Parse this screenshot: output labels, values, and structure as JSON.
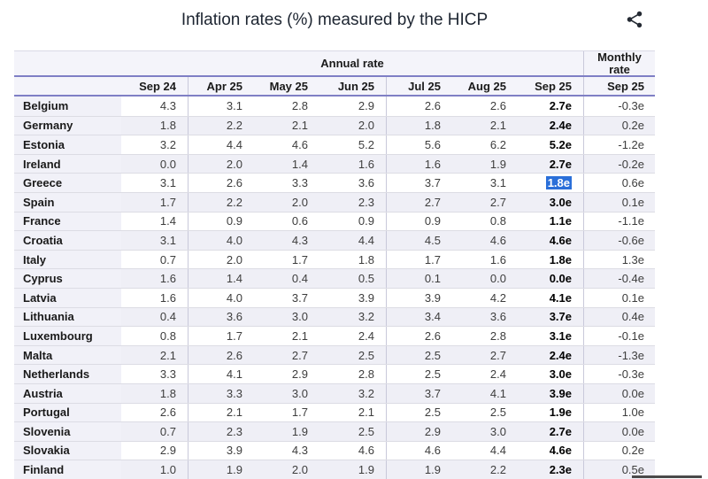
{
  "title": "Inflation rates (%) measured by the HICP",
  "share_button": {
    "icon": "share-icon"
  },
  "colors": {
    "selection_bg": "#2a6fd9",
    "selection_text": "#ffffff",
    "header_border_blue": "#7f7fc5",
    "header_bg": "#f4f4fa",
    "row_alt_bg": "#efeff6",
    "label_column_bg": "#f1f1f8"
  },
  "chart_data": {
    "type": "table",
    "title": "Inflation rates (%) measured by the HICP",
    "group_headers": {
      "annual": "Annual rate",
      "monthly": "Monthly rate"
    },
    "annual_columns": [
      "Sep 24",
      "Apr 25",
      "May 25",
      "Jun 25",
      "Jul 25",
      "Aug 25",
      "Sep 25"
    ],
    "monthly_column": "Sep 25",
    "selected_cell": {
      "country": "Greece",
      "column": "Sep 25",
      "value": "1.8e"
    },
    "rows": [
      {
        "country": "Belgium",
        "annual": [
          "4.3",
          "3.1",
          "2.8",
          "2.9",
          "2.6",
          "2.6",
          "2.7e"
        ],
        "monthly": "-0.3e"
      },
      {
        "country": "Germany",
        "annual": [
          "1.8",
          "2.2",
          "2.1",
          "2.0",
          "1.8",
          "2.1",
          "2.4e"
        ],
        "monthly": "0.2e"
      },
      {
        "country": "Estonia",
        "annual": [
          "3.2",
          "4.4",
          "4.6",
          "5.2",
          "5.6",
          "6.2",
          "5.2e"
        ],
        "monthly": "-1.2e"
      },
      {
        "country": "Ireland",
        "annual": [
          "0.0",
          "2.0",
          "1.4",
          "1.6",
          "1.6",
          "1.9",
          "2.7e"
        ],
        "monthly": "-0.2e"
      },
      {
        "country": "Greece",
        "annual": [
          "3.1",
          "2.6",
          "3.3",
          "3.6",
          "3.7",
          "3.1",
          "1.8e"
        ],
        "monthly": "0.6e"
      },
      {
        "country": "Spain",
        "annual": [
          "1.7",
          "2.2",
          "2.0",
          "2.3",
          "2.7",
          "2.7",
          "3.0e"
        ],
        "monthly": "0.1e"
      },
      {
        "country": "France",
        "annual": [
          "1.4",
          "0.9",
          "0.6",
          "0.9",
          "0.9",
          "0.8",
          "1.1e"
        ],
        "monthly": "-1.1e"
      },
      {
        "country": "Croatia",
        "annual": [
          "3.1",
          "4.0",
          "4.3",
          "4.4",
          "4.5",
          "4.6",
          "4.6e"
        ],
        "monthly": "-0.6e"
      },
      {
        "country": "Italy",
        "annual": [
          "0.7",
          "2.0",
          "1.7",
          "1.8",
          "1.7",
          "1.6",
          "1.8e"
        ],
        "monthly": "1.3e"
      },
      {
        "country": "Cyprus",
        "annual": [
          "1.6",
          "1.4",
          "0.4",
          "0.5",
          "0.1",
          "0.0",
          "0.0e"
        ],
        "monthly": "-0.4e"
      },
      {
        "country": "Latvia",
        "annual": [
          "1.6",
          "4.0",
          "3.7",
          "3.9",
          "3.9",
          "4.2",
          "4.1e"
        ],
        "monthly": "0.1e"
      },
      {
        "country": "Lithuania",
        "annual": [
          "0.4",
          "3.6",
          "3.0",
          "3.2",
          "3.4",
          "3.6",
          "3.7e"
        ],
        "monthly": "0.4e"
      },
      {
        "country": "Luxembourg",
        "annual": [
          "0.8",
          "1.7",
          "2.1",
          "2.4",
          "2.6",
          "2.8",
          "3.1e"
        ],
        "monthly": "-0.1e"
      },
      {
        "country": "Malta",
        "annual": [
          "2.1",
          "2.6",
          "2.7",
          "2.5",
          "2.5",
          "2.7",
          "2.4e"
        ],
        "monthly": "-1.3e"
      },
      {
        "country": "Netherlands",
        "annual": [
          "3.3",
          "4.1",
          "2.9",
          "2.8",
          "2.5",
          "2.4",
          "3.0e"
        ],
        "monthly": "-0.3e"
      },
      {
        "country": "Austria",
        "annual": [
          "1.8",
          "3.3",
          "3.0",
          "3.2",
          "3.7",
          "4.1",
          "3.9e"
        ],
        "monthly": "0.0e"
      },
      {
        "country": "Portugal",
        "annual": [
          "2.6",
          "2.1",
          "1.7",
          "2.1",
          "2.5",
          "2.5",
          "1.9e"
        ],
        "monthly": "1.0e"
      },
      {
        "country": "Slovenia",
        "annual": [
          "0.7",
          "2.3",
          "1.9",
          "2.5",
          "2.9",
          "3.0",
          "2.7e"
        ],
        "monthly": "0.0e"
      },
      {
        "country": "Slovakia",
        "annual": [
          "2.9",
          "3.9",
          "4.3",
          "4.6",
          "4.6",
          "4.4",
          "4.6e"
        ],
        "monthly": "0.2e"
      },
      {
        "country": "Finland",
        "annual": [
          "1.0",
          "1.9",
          "2.0",
          "1.9",
          "1.9",
          "2.2",
          "2.3e"
        ],
        "monthly": "0.5e"
      }
    ]
  }
}
